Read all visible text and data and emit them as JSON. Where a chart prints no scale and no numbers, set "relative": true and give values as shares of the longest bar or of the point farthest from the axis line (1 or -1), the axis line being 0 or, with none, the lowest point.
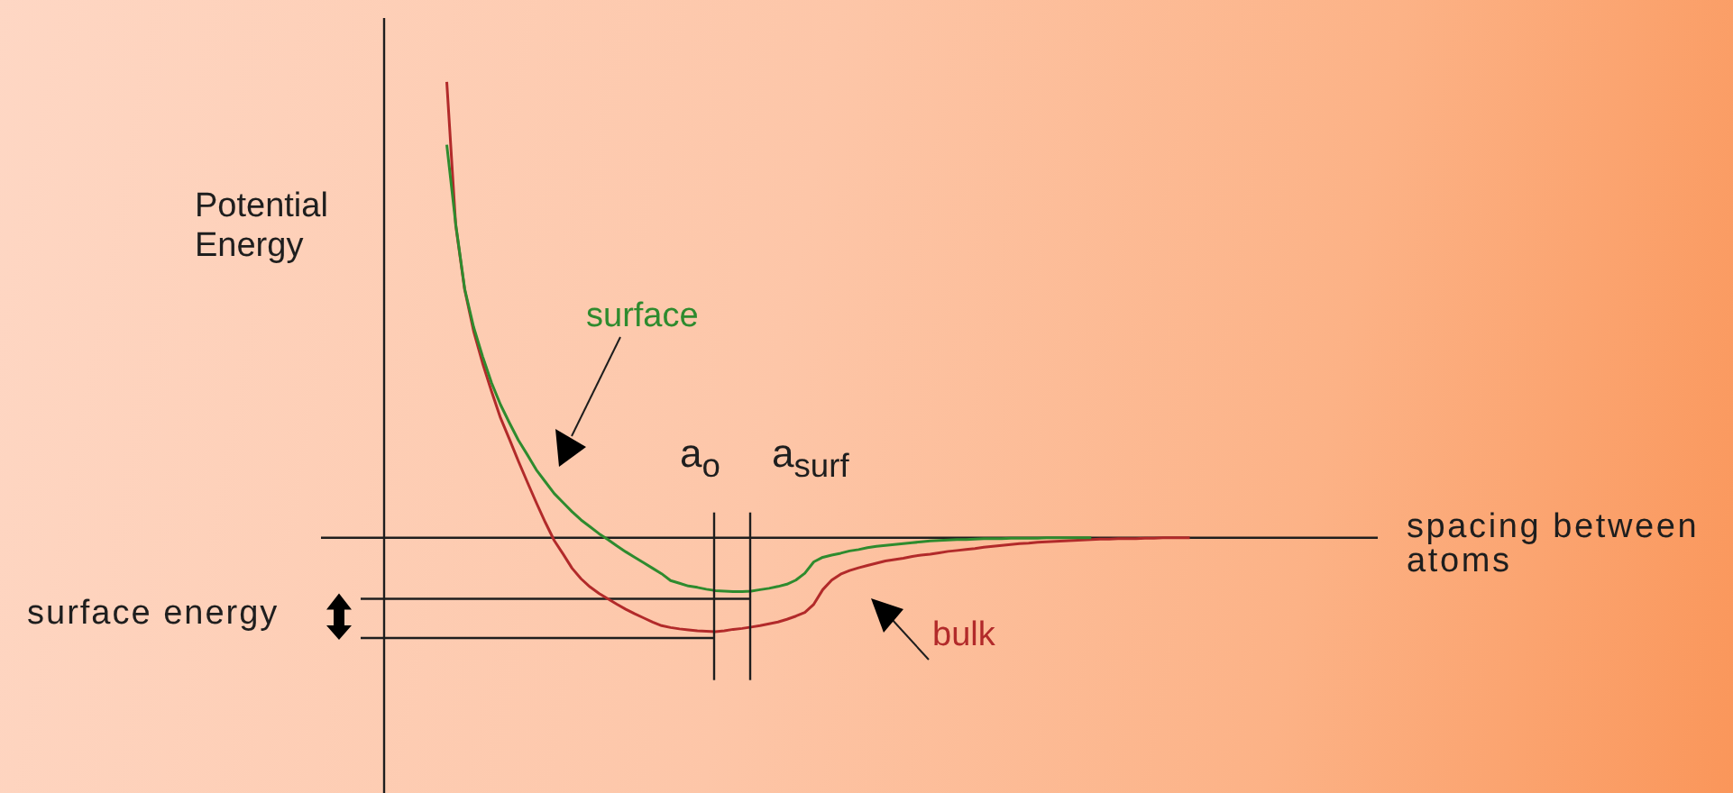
{
  "chart_data": {
    "type": "line",
    "relative": true,
    "xlabel": "spacing between atoms",
    "ylabel": "Potential Energy",
    "categories": [
      null,
      null,
      null,
      null,
      null,
      null,
      null,
      null,
      null,
      null,
      null,
      null,
      null,
      null,
      null,
      null,
      null,
      null,
      null,
      null,
      null,
      null,
      null,
      null,
      null,
      null,
      null,
      null,
      null,
      null,
      null,
      null,
      null,
      null,
      null,
      null,
      null,
      null,
      null,
      null,
      null,
      null,
      null,
      null,
      null,
      null,
      null,
      null,
      null,
      null,
      null,
      null,
      null,
      null,
      null,
      null,
      null,
      null,
      null,
      null,
      null,
      null,
      null,
      null,
      null,
      null,
      null,
      null,
      null,
      null,
      null,
      null,
      null,
      null,
      null,
      null,
      null,
      null,
      null,
      null,
      null,
      null,
      null,
      null,
      null,
      null,
      null,
      null,
      null,
      null,
      null,
      null,
      null,
      null,
      null,
      null,
      null,
      null,
      null,
      null,
      null,
      null,
      null,
      null,
      null,
      null,
      null,
      null,
      null,
      null,
      null,
      null
    ],
    "series": [
      {
        "name": "bulk",
        "color": "#b22a2a",
        "values": [
          null,
          null,
          null,
          null,
          null,
          null,
          null,
          1.0,
          0.685,
          0.544,
          0.453,
          0.383,
          0.321,
          0.263,
          0.216,
          0.168,
          0.122,
          0.077,
          0.034,
          -0.006,
          -0.036,
          -0.067,
          -0.09,
          -0.108,
          -0.122,
          -0.134,
          -0.146,
          -0.157,
          -0.167,
          -0.176,
          -0.185,
          -0.193,
          -0.197,
          -0.2,
          -0.202,
          -0.204,
          -0.205,
          -0.206,
          -0.204,
          -0.201,
          -0.199,
          -0.196,
          -0.193,
          -0.189,
          -0.185,
          -0.179,
          -0.172,
          -0.164,
          -0.146,
          -0.114,
          -0.093,
          -0.08,
          -0.072,
          -0.066,
          -0.061,
          -0.056,
          -0.051,
          -0.048,
          -0.045,
          -0.041,
          -0.038,
          -0.036,
          -0.033,
          -0.03,
          -0.028,
          -0.026,
          -0.024,
          -0.021,
          -0.019,
          -0.017,
          -0.015,
          -0.013,
          -0.012,
          -0.01,
          -0.009,
          -0.008,
          -0.007,
          -0.006,
          -0.005,
          -0.004,
          -0.003,
          -0.003,
          -0.002,
          -0.002,
          -0.002,
          -0.001,
          -0.001,
          0,
          0,
          0,
          0,
          null,
          null,
          null,
          null,
          null,
          null,
          null,
          null,
          null,
          null,
          null,
          null,
          null,
          null,
          null,
          null,
          null,
          null,
          null,
          null,
          null
        ]
      },
      {
        "name": "surface",
        "color": "#2e8b2e",
        "values": [
          null,
          null,
          null,
          null,
          null,
          null,
          null,
          0.862,
          0.688,
          0.546,
          0.462,
          0.398,
          0.34,
          0.292,
          0.252,
          0.214,
          0.182,
          0.149,
          0.123,
          0.097,
          0.077,
          0.057,
          0.039,
          0.024,
          0.009,
          -0.004,
          -0.018,
          -0.031,
          -0.043,
          -0.055,
          -0.067,
          -0.079,
          -0.094,
          -0.1,
          -0.106,
          -0.109,
          -0.113,
          -0.116,
          -0.117,
          -0.118,
          -0.118,
          -0.117,
          -0.114,
          -0.111,
          -0.107,
          -0.102,
          -0.093,
          -0.078,
          -0.053,
          -0.043,
          -0.038,
          -0.034,
          -0.029,
          -0.026,
          -0.022,
          -0.019,
          -0.017,
          -0.015,
          -0.013,
          -0.011,
          -0.009,
          -0.007,
          -0.006,
          -0.005,
          -0.004,
          -0.004,
          -0.003,
          -0.002,
          -0.002,
          -0.002,
          -0.001,
          -0.001,
          -0.001,
          -0.001,
          0,
          0,
          0,
          0,
          0,
          0,
          null,
          null,
          null,
          null,
          null,
          null,
          null,
          null,
          null,
          null,
          null,
          null,
          null,
          null,
          null,
          null,
          null,
          null,
          null,
          null,
          null,
          null,
          null,
          null,
          null,
          null,
          null,
          null,
          null,
          null,
          null,
          null
        ]
      }
    ],
    "ref_lines": [
      {
        "axis": "y",
        "value": -0.22
      },
      {
        "axis": "y",
        "value": -0.134
      }
    ],
    "annotations": [
      "a$_{o}$",
      "a$_{surf}$",
      "surface energy"
    ]
  }
}
